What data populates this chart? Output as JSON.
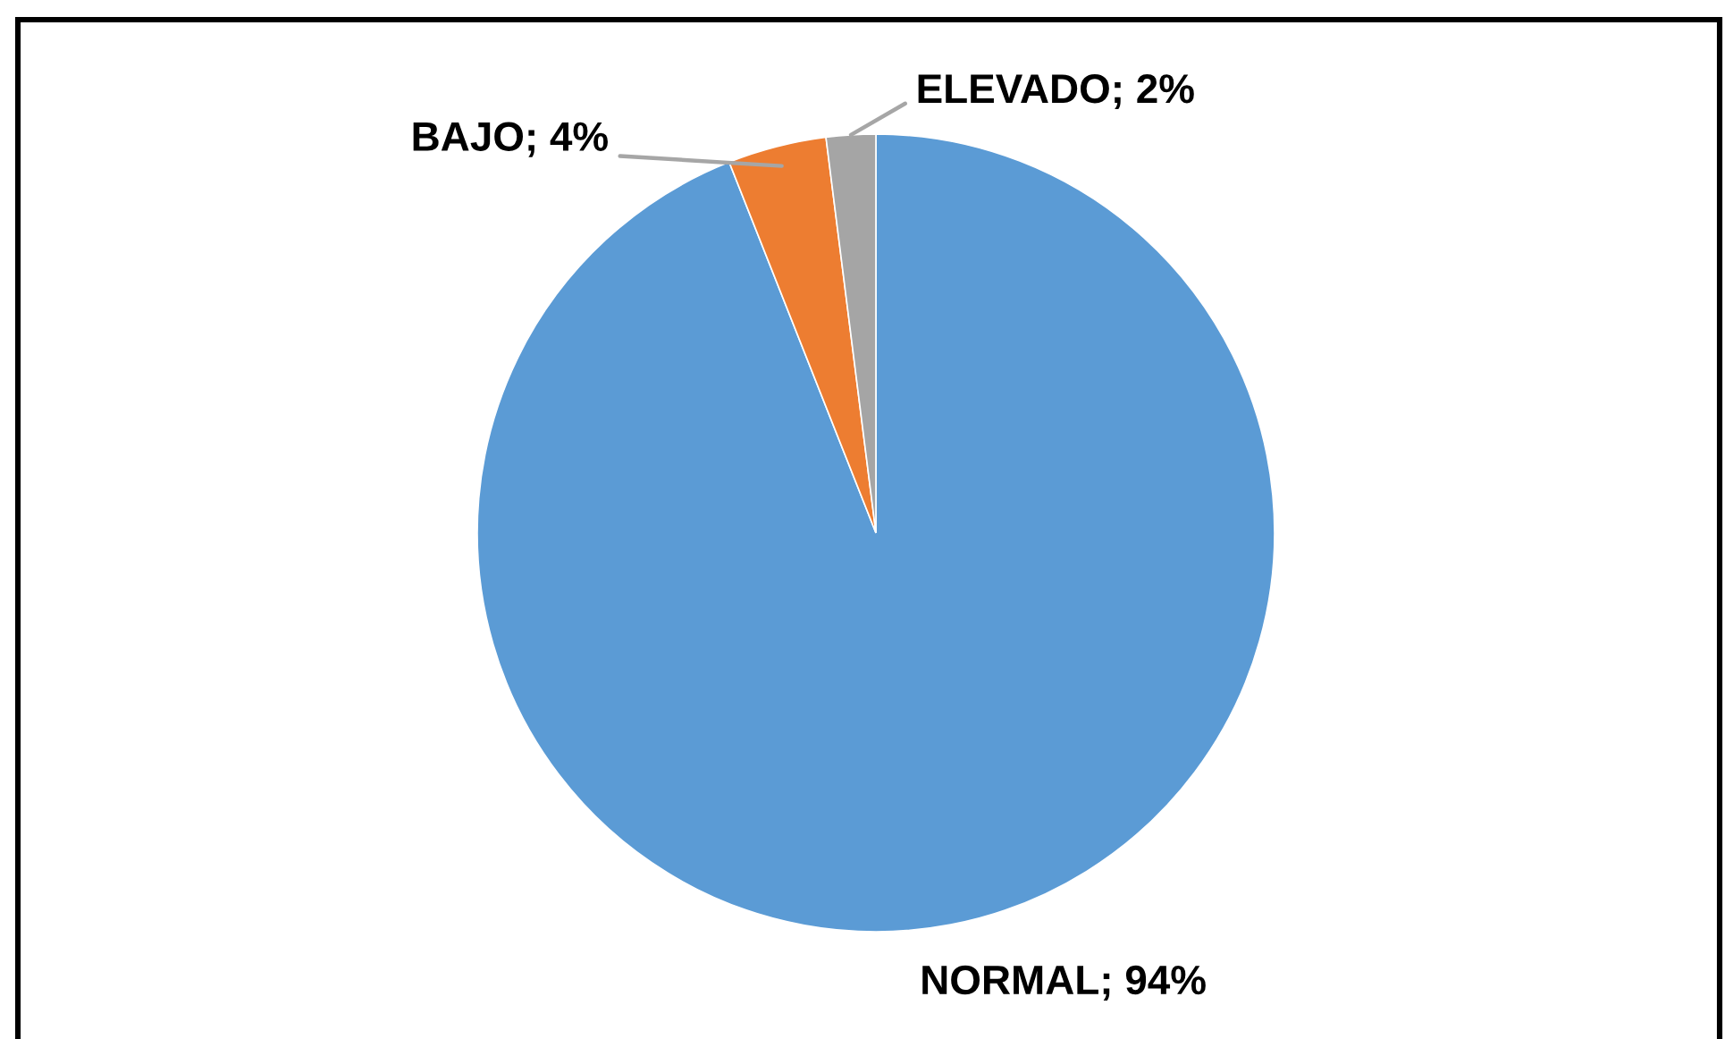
{
  "chart_data": {
    "type": "pie",
    "categories": [
      "NORMAL",
      "BAJO",
      "ELEVADO"
    ],
    "values": [
      94,
      4,
      2
    ],
    "colors": [
      "#5b9bd5",
      "#ed7d31",
      "#a5a5a5"
    ],
    "value_labels": [
      "94%",
      "4%",
      "2%"
    ]
  }
}
